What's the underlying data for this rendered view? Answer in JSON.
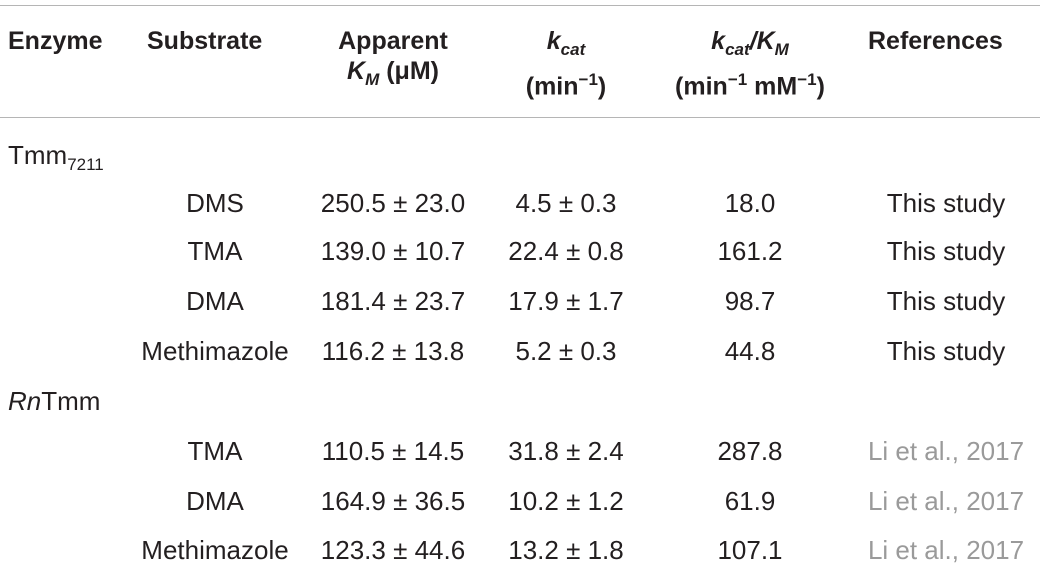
{
  "header": {
    "enzyme": "Enzyme",
    "substrate": "Substrate",
    "km": {
      "line1": "Apparent",
      "symbol": "K",
      "sub": "M",
      "unit": "(μM)"
    },
    "kcat": {
      "symbol": "k",
      "sub": "cat",
      "unit_open": "(min",
      "unit_sup": "−1",
      "unit_close": ")"
    },
    "ratio": {
      "symbol1": "k",
      "sub1": "cat",
      "slash": "/",
      "symbol2": "K",
      "sub2": "M",
      "unit_open": "(min",
      "unit_sup1": "−1",
      "unit_mid": " mM",
      "unit_sup2": "−1",
      "unit_close": ")"
    },
    "references": "References"
  },
  "groups": [
    {
      "name": "Tmm",
      "name_sub": "7211",
      "rows": [
        [
          "DMS",
          "250.5 ± 23.0",
          "4.5 ± 0.3",
          "18.0",
          "This study"
        ],
        [
          "TMA",
          "139.0 ± 10.7",
          "22.4 ± 0.8",
          "161.2",
          "This study"
        ],
        [
          "DMA",
          "181.4 ± 23.7",
          "17.9 ± 1.7",
          "98.7",
          "This study"
        ],
        [
          "Methimazole",
          "116.2 ± 13.8",
          "5.2 ± 0.3",
          "44.8",
          "This study"
        ]
      ]
    },
    {
      "name_italic": "Rn",
      "name": "Tmm",
      "rows": [
        [
          "TMA",
          "110.5 ± 14.5",
          "31.8 ± 2.4",
          "287.8",
          "Li et al., 2017"
        ],
        [
          "DMA",
          "164.9 ± 36.5",
          "10.2 ± 1.2",
          "61.9",
          "Li et al., 2017"
        ],
        [
          "Methimazole",
          "123.3 ± 44.6",
          "13.2 ± 1.8",
          "107.1",
          "Li et al., 2017"
        ]
      ]
    }
  ]
}
